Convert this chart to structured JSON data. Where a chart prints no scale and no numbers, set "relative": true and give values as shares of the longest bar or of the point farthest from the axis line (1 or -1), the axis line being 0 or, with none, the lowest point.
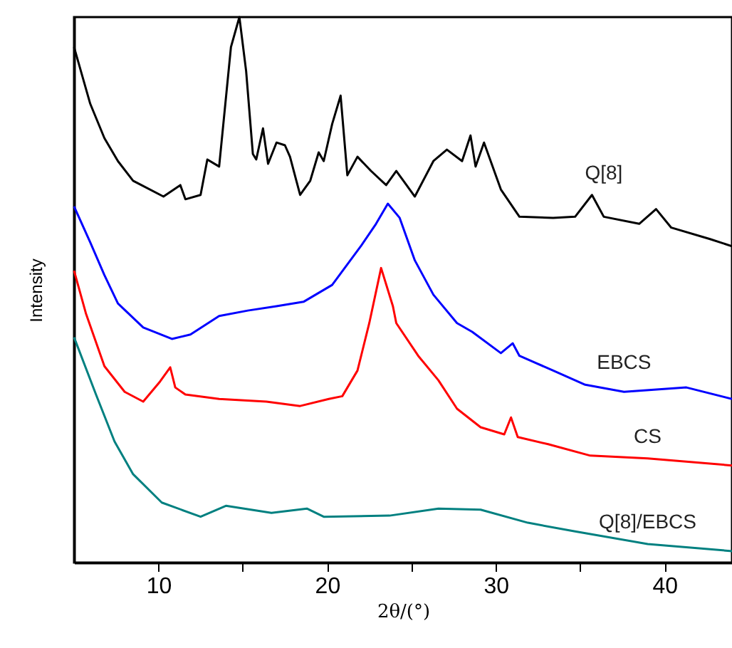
{
  "chart_data": {
    "type": "line",
    "xlabel": "2θ/(°)",
    "ylabel": "Intensity",
    "relative": true,
    "xlim": [
      5,
      44
    ],
    "xticks": [
      10,
      {
        "value": 15,
        "label": null
      },
      20,
      {
        "value": 25,
        "label": null
      },
      30,
      {
        "value": 35,
        "label": null
      },
      40
    ],
    "grid": false,
    "marker": "none",
    "line_style": "solid",
    "series": [
      {
        "name": "Q[8]",
        "color": "#000000",
        "x": [
          5,
          5.96,
          6.8,
          7.6,
          8.5,
          10.3,
          11.3,
          11.6,
          12.5,
          12.9,
          13.6,
          14.3,
          14.8,
          15.2,
          15.6,
          15.8,
          16.2,
          16.5,
          17.0,
          17.5,
          17.8,
          18.4,
          19.0,
          19.5,
          19.8,
          20.3,
          20.8,
          21.2,
          21.8,
          22.6,
          23.5,
          24.1,
          25.2,
          26.3,
          27.1,
          28.0,
          28.5,
          28.8,
          29.3,
          30.3,
          31.4,
          33.4,
          34.7,
          35.7,
          36.4,
          38.5,
          39.5,
          40.4,
          42.7,
          44
        ],
        "values": [
          0.945,
          0.841,
          0.778,
          0.736,
          0.7,
          0.671,
          0.692,
          0.666,
          0.674,
          0.739,
          0.726,
          0.945,
          1.0,
          0.901,
          0.749,
          0.739,
          0.796,
          0.731,
          0.77,
          0.765,
          0.744,
          0.674,
          0.7,
          0.752,
          0.736,
          0.804,
          0.856,
          0.71,
          0.744,
          0.718,
          0.692,
          0.718,
          0.671,
          0.736,
          0.757,
          0.736,
          0.783,
          0.726,
          0.77,
          0.684,
          0.634,
          0.632,
          0.634,
          0.674,
          0.634,
          0.621,
          0.648,
          0.614,
          0.593,
          0.58
        ]
      },
      {
        "name": "EBCS",
        "color": "#0000ff",
        "x": [
          5,
          5.96,
          6.8,
          7.6,
          9.1,
          10.8,
          11.9,
          13.6,
          15.3,
          17,
          18.6,
          20.3,
          22,
          22.9,
          23.6,
          24.3,
          25.2,
          26.3,
          27.7,
          28.6,
          30.3,
          31,
          31.4,
          33.4,
          35.3,
          37.6,
          41.3,
          44
        ],
        "values": [
          0.653,
          0.587,
          0.527,
          0.475,
          0.431,
          0.41,
          0.418,
          0.452,
          0.462,
          0.47,
          0.478,
          0.509,
          0.58,
          0.621,
          0.658,
          0.632,
          0.554,
          0.491,
          0.439,
          0.423,
          0.384,
          0.402,
          0.379,
          0.352,
          0.326,
          0.313,
          0.321,
          0.3
        ]
      },
      {
        "name": "CS",
        "color": "#ff0000",
        "x": [
          5,
          5.7,
          6.8,
          8,
          9.1,
          10.1,
          10.7,
          11.0,
          11.6,
          13.6,
          16.4,
          18.4,
          20.1,
          20.9,
          21.8,
          22.5,
          23.2,
          23.9,
          24.1,
          25.4,
          26.6,
          27.7,
          29.1,
          30.5,
          30.9,
          31.3,
          33.1,
          35.6,
          39,
          44
        ],
        "values": [
          0.535,
          0.457,
          0.36,
          0.313,
          0.295,
          0.332,
          0.358,
          0.321,
          0.308,
          0.3,
          0.295,
          0.287,
          0.3,
          0.305,
          0.352,
          0.439,
          0.54,
          0.47,
          0.439,
          0.379,
          0.334,
          0.282,
          0.248,
          0.235,
          0.266,
          0.23,
          0.217,
          0.196,
          0.191,
          0.178
        ]
      },
      {
        "name": "Q[8]/EBCS",
        "color": "#008080",
        "x": [
          5,
          6.3,
          7.4,
          8.5,
          10.2,
          12.5,
          14,
          16.7,
          18.8,
          19.8,
          23.7,
          26.6,
          29.1,
          31.9,
          34.7,
          39,
          44
        ],
        "values": [
          0.413,
          0.308,
          0.222,
          0.162,
          0.11,
          0.084,
          0.104,
          0.091,
          0.099,
          0.084,
          0.086,
          0.099,
          0.097,
          0.073,
          0.057,
          0.034,
          0.021
        ]
      }
    ]
  }
}
